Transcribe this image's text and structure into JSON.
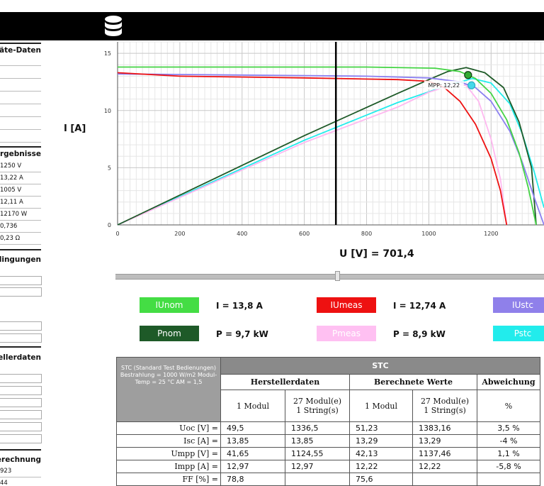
{
  "sidebar": {
    "geraete_heading": "eräte-Daten",
    "ergebnisse_heading": "-Ergebnisse",
    "ergebnisse_values": [
      "1250 V",
      "13,22 A",
      "1005 V",
      "12,11 A",
      "12170 W",
      "0,736",
      "0,23 Ω"
    ],
    "bedingungen_heading": "edingungen",
    "herstellerdaten_heading": "stellerdaten",
    "berechnung_heading": "Berechnung",
    "berechnung_values": [
      "923",
      "44"
    ]
  },
  "chart_data": {
    "type": "line",
    "xlabel": "U [V] = 701,4",
    "ylabel": "I [A]",
    "xlim": [
      0,
      1370
    ],
    "ylim": [
      0,
      16
    ],
    "xticks": [
      0,
      200,
      400,
      600,
      800,
      1000,
      1200
    ],
    "yticks": [
      0,
      5,
      10,
      15
    ],
    "grid": true,
    "cursor_x": 701.4,
    "series": [
      {
        "name": "IUnom",
        "color": "#44d444",
        "points": [
          [
            0,
            13.8
          ],
          [
            800,
            13.8
          ],
          [
            1020,
            13.7
          ],
          [
            1100,
            13.4
          ],
          [
            1150,
            12.8
          ],
          [
            1200,
            11.5
          ],
          [
            1250,
            9.2
          ],
          [
            1290,
            6.3
          ],
          [
            1320,
            3.2
          ],
          [
            1345,
            0
          ]
        ]
      },
      {
        "name": "IUmeas",
        "color": "#ee1111",
        "points": [
          [
            0,
            13.3
          ],
          [
            200,
            13.0
          ],
          [
            600,
            12.85
          ],
          [
            900,
            12.7
          ],
          [
            1000,
            12.55
          ],
          [
            1050,
            12.0
          ],
          [
            1100,
            10.8
          ],
          [
            1150,
            8.8
          ],
          [
            1200,
            5.8
          ],
          [
            1230,
            3.0
          ],
          [
            1250,
            0
          ]
        ]
      },
      {
        "name": "IUstc",
        "color": "#8b7ff0",
        "points": [
          [
            0,
            13.2
          ],
          [
            400,
            13.1
          ],
          [
            800,
            13.0
          ],
          [
            1000,
            12.85
          ],
          [
            1100,
            12.5
          ],
          [
            1150,
            12.0
          ],
          [
            1200,
            10.8
          ],
          [
            1260,
            8.2
          ],
          [
            1300,
            5.5
          ],
          [
            1340,
            2.3
          ],
          [
            1370,
            0
          ]
        ]
      },
      {
        "name": "Pnom",
        "color": "#1e5a28",
        "points": [
          [
            0,
            0
          ],
          [
            600,
            7.8
          ],
          [
            900,
            11.5
          ],
          [
            1000,
            12.7
          ],
          [
            1060,
            13.4
          ],
          [
            1120,
            13.75
          ],
          [
            1180,
            13.3
          ],
          [
            1240,
            12.0
          ],
          [
            1290,
            9.0
          ],
          [
            1330,
            5.0
          ],
          [
            1345,
            0
          ]
        ]
      },
      {
        "name": "Pmeas",
        "color": "#ffb8f0",
        "points": [
          [
            0,
            0
          ],
          [
            600,
            7.2
          ],
          [
            900,
            10.3
          ],
          [
            1000,
            11.6
          ],
          [
            1080,
            12.3
          ],
          [
            1120,
            12.2
          ],
          [
            1160,
            10.8
          ],
          [
            1200,
            7.5
          ],
          [
            1230,
            4.0
          ],
          [
            1250,
            0
          ]
        ]
      },
      {
        "name": "Pstc",
        "color": "#22ecec",
        "points": [
          [
            0,
            0
          ],
          [
            600,
            7.4
          ],
          [
            900,
            10.7
          ],
          [
            1050,
            12.1
          ],
          [
            1140,
            12.8
          ],
          [
            1200,
            12.4
          ],
          [
            1260,
            10.6
          ],
          [
            1300,
            8.0
          ],
          [
            1340,
            4.5
          ],
          [
            1370,
            1.5
          ]
        ]
      }
    ],
    "markers": [
      {
        "x": 1126,
        "y": 13.1,
        "color": "#33aa33",
        "label": "MPP: 12,22"
      },
      {
        "x": 1137,
        "y": 12.2,
        "color": "#44d8ea",
        "label": ""
      }
    ]
  },
  "legend": {
    "items": [
      {
        "label": "IUnom",
        "color": "#44dd44"
      },
      {
        "label": "IUmeas",
        "color": "#ee1111"
      },
      {
        "label": "IUstc",
        "color": "#8f80ea"
      },
      {
        "label": "Pnom",
        "color": "#1e5a28"
      },
      {
        "label": "Pmeas",
        "color": "#ffc0f2"
      },
      {
        "label": "Pstc",
        "color": "#22ecec"
      }
    ],
    "values": [
      "I =  13,8 A",
      "I =  12,74 A",
      "P =  9,7 kW",
      "P =  8,9 kW"
    ]
  },
  "stc_table": {
    "corner_text": "STC (Standard Test Bedienungen) Bestrahlung = 1000 W/m2 Modul-Temp = 25 °C AM = 1,5",
    "title": "STC",
    "herstellerdaten": "Herstellerdaten",
    "berechnete_werte": "Berechnete Werte",
    "abweichung": "Abweichung",
    "sub_1modul": "1 Modul",
    "sub_string_line1": "27 Modul(e)",
    "sub_string_line2": "1 String(s)",
    "sub_pct": "%",
    "rows": [
      {
        "label": "Uoc [V] =",
        "h1": "49,5",
        "h27": "1336,5",
        "b1": "51,23",
        "b27": "1383,16",
        "ab": "3,5  %"
      },
      {
        "label": "Isc [A] =",
        "h1": "13,85",
        "h27": "13,85",
        "b1": "13,29",
        "b27": "13,29",
        "ab": "-4  %"
      },
      {
        "label": "Umpp [V] =",
        "h1": "41,65",
        "h27": "1124,55",
        "b1": "42,13",
        "b27": "1137,46",
        "ab": "1,1  %"
      },
      {
        "label": "Impp [A] =",
        "h1": "12,97",
        "h27": "12,97",
        "b1": "12,22",
        "b27": "12,22",
        "ab": "-5,8  %"
      },
      {
        "label": "FF [%] =",
        "h1": "78,8",
        "h27": "",
        "b1": "75,6",
        "b27": "",
        "ab": ""
      }
    ]
  }
}
